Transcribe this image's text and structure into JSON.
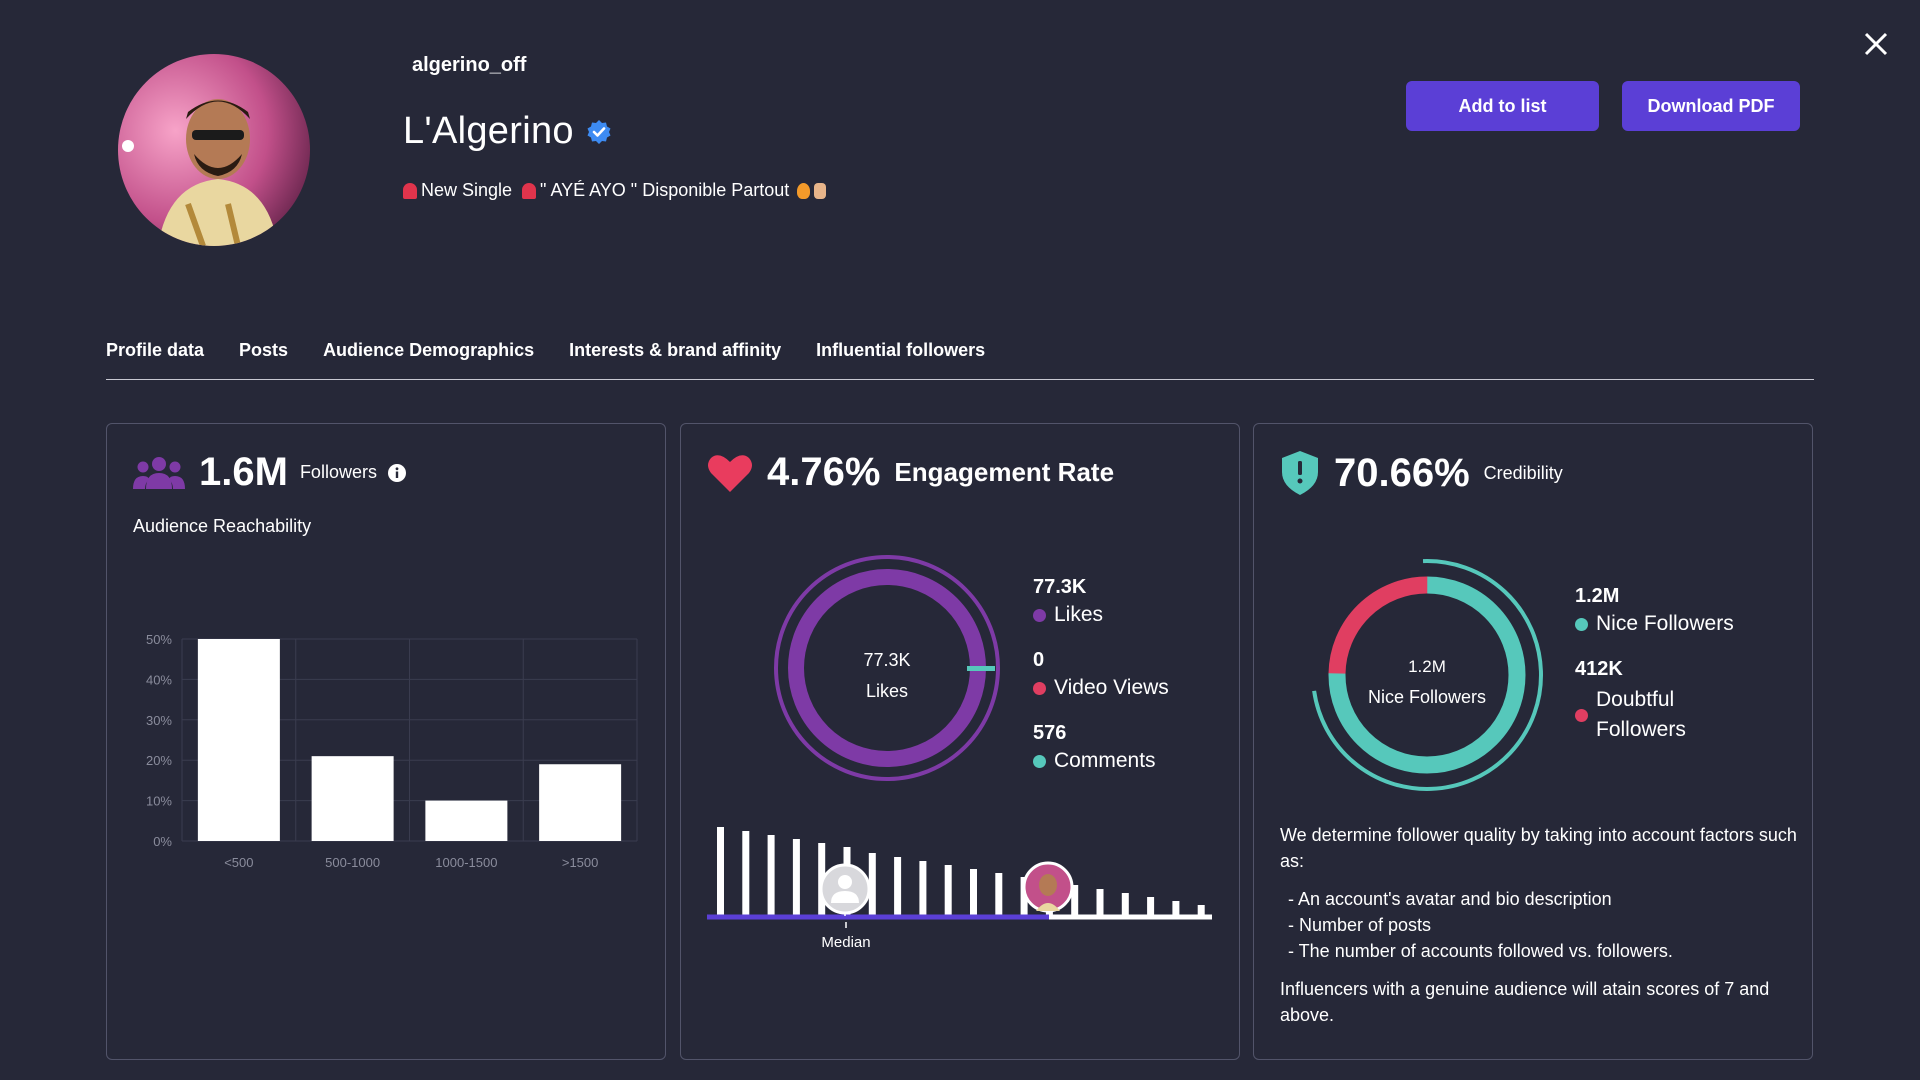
{
  "profile": {
    "handle": "algerino_off",
    "name": "L'Algerino",
    "bio_part1": "New Single",
    "bio_part2": "\" AYÉ AYO \" Disponible Partout",
    "verified_icon": "verified-badge-icon"
  },
  "actions": {
    "add_to_list": "Add to list",
    "download_pdf": "Download PDF"
  },
  "tabs": [
    {
      "label": "Profile data"
    },
    {
      "label": "Posts"
    },
    {
      "label": "Audience Demographics"
    },
    {
      "label": "Interests & brand affinity"
    },
    {
      "label": "Influential followers"
    }
  ],
  "followers_card": {
    "value": "1.6M",
    "label": "Followers",
    "subtitle": "Audience Reachability"
  },
  "engagement_card": {
    "value": "4.76%",
    "label": "Engagement Rate",
    "center_value": "77.3K",
    "center_label": "Likes",
    "likes_value": "77.3K",
    "likes_label": "Likes",
    "views_value": "0",
    "views_label": "Video Views",
    "comments_value": "576",
    "comments_label": "Comments",
    "median_label": "Median"
  },
  "credibility_card": {
    "value": "70.66%",
    "label": "Credibility",
    "center_value": "1.2M",
    "center_label": "Nice Followers",
    "nice_value": "1.2M",
    "nice_label": "Nice Followers",
    "doubtful_value": "412K",
    "doubtful_label_1": "Doubtful",
    "doubtful_label_2": "Followers",
    "desc_intro": "We determine follower quality by taking into account factors such as:",
    "desc_items": [
      "- An account's avatar and bio description",
      "- Number of posts",
      "- The number of accounts followed vs. followers."
    ],
    "desc_outro": "Influencers with a genuine audience will atain scores of 7 and above."
  },
  "colors": {
    "background": "#262838",
    "accent_button": "#5b3fd6",
    "purple": "#7e3aa6",
    "red": "#e03e61",
    "teal": "#56c8bb",
    "heart": "#e93c5e",
    "shield": "#56c8bb"
  },
  "chart_data": [
    {
      "type": "bar",
      "title": "",
      "categories": [
        "<500",
        "500-1000",
        "1000-1500",
        ">1500"
      ],
      "values": [
        50,
        21,
        10,
        19
      ],
      "ylim": [
        0,
        50
      ],
      "yticks": [
        "0%",
        "10%",
        "20%",
        "30%",
        "40%",
        "50%"
      ],
      "xlabel": "",
      "ylabel": "",
      "grid": true
    },
    {
      "type": "pie",
      "title": "",
      "categories": [
        "Likes",
        "Video Views",
        "Comments"
      ],
      "values": [
        77300,
        0,
        576
      ]
    },
    {
      "type": "pie",
      "title": "",
      "categories": [
        "Nice Followers",
        "Doubtful Followers"
      ],
      "values": [
        1200000,
        412000
      ]
    }
  ]
}
